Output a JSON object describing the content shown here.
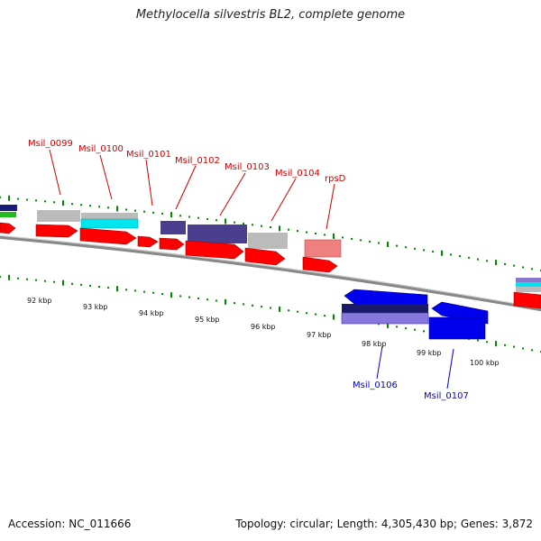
{
  "title": "Methylocella silvestris BL2, complete genome",
  "footer": {
    "accession": "Accession: NC_011666",
    "summary": "Topology: circular; Length: 4,305,430 bp; Genes: 3,872"
  },
  "scale_labels": [
    "92 kbp",
    "93 kbp",
    "94 kbp",
    "95 kbp",
    "96 kbp",
    "97 kbp",
    "98 kbp",
    "99 kbp",
    "100 kbp"
  ],
  "forward_labels": [
    "Msil_0099",
    "Msil_0100",
    "Msil_0101",
    "Msil_0102",
    "Msil_0103",
    "Msil_0104",
    "rpsD"
  ],
  "reverse_labels": [
    "Msil_0106",
    "Msil_0107"
  ],
  "colors": {
    "forward_label": "#cc0000",
    "reverse_label": "#0000cc",
    "cds": "#ff0000",
    "cds_reverse": "#0000ee",
    "backbone": "#888888",
    "tick": "#008800",
    "gray_feature": "#bbbbbb",
    "purple_feature": "#4a3f8f",
    "cyan_feature": "#00e5ee",
    "pink_feature": "#f08080"
  }
}
